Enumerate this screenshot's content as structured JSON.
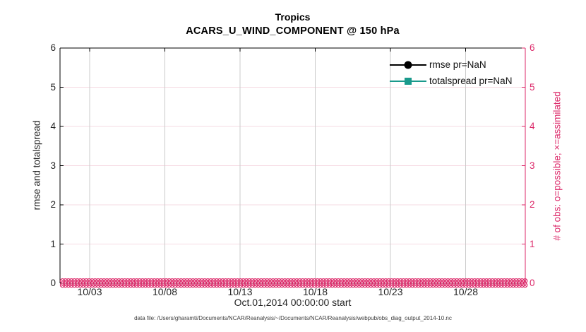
{
  "title": {
    "line1": "Tropics",
    "line2": "ACARS_U_WIND_COMPONENT @ 150 hPa"
  },
  "axes": {
    "x": {
      "label": "Oct.01,2014 00:00:00 start",
      "tick_labels": [
        "10/03",
        "10/08",
        "10/13",
        "10/18",
        "10/23",
        "10/28"
      ]
    },
    "y_left": {
      "label": "rmse and totalspread",
      "tick_labels": [
        "0",
        "1",
        "2",
        "3",
        "4",
        "5",
        "6"
      ],
      "color": "#262626"
    },
    "y_right": {
      "label": "# of obs: o=possible; ×=assimilated",
      "tick_labels": [
        "0",
        "1",
        "2",
        "3",
        "4",
        "5",
        "6"
      ],
      "color": "#dc2a6a"
    }
  },
  "legend": [
    {
      "label": "rmse pr=NaN",
      "color": "#000000",
      "marker": "circle"
    },
    {
      "label": "totalspread pr=NaN",
      "color": "#1a9a8c",
      "marker": "square"
    }
  ],
  "caption": "data file: /Users/gharamti/Documents/NCAR/Reanalysis/~/Documents/NCAR/Reanalysis/webpub/obs_diag_output_2014-10.nc",
  "colors": {
    "accent_pink": "#dc2a6a",
    "grid_vertical": "#cbcbcb",
    "grid_horizontal": "#f6dbe3",
    "teal": "#1a9a8c",
    "axis_black": "#000000"
  },
  "chart_data": {
    "type": "line",
    "title": "Tropics",
    "subtitle": "ACARS_U_WIND_COMPONENT @ 150 hPa",
    "xlabel": "Oct.01,2014 00:00:00 start",
    "ylabel_left": "rmse and totalspread",
    "ylabel_right": "# of obs: o=possible; ×=assimilated",
    "x_tick_labels": [
      "10/03",
      "10/08",
      "10/13",
      "10/18",
      "10/23",
      "10/28"
    ],
    "x_range": "Oct 01 2014 through Nov 01 2014",
    "ylim_left": [
      0,
      6
    ],
    "ylim_right": [
      0,
      6
    ],
    "grid": true,
    "legend_position": "upper-right-inside",
    "series": [
      {
        "name": "rmse pr=NaN",
        "axis": "left",
        "marker": "filled-circle",
        "color": "#000000",
        "values": "all NaN - no curve plotted"
      },
      {
        "name": "totalspread pr=NaN",
        "axis": "left",
        "marker": "filled-square",
        "color": "#1a9a8c",
        "values": "all NaN - no curve plotted"
      },
      {
        "name": "# of obs possible (o markers)",
        "axis": "right",
        "marker": "o",
        "color": "#dc2a6a",
        "constant_value": 0,
        "note": "dense row of o markers at y=0 spanning the full x-axis"
      },
      {
        "name": "# of obs assimilated (× markers)",
        "axis": "right",
        "marker": "×",
        "color": "#dc2a6a",
        "constant_value": 0,
        "note": "dense row of × markers at y=0 spanning the full x-axis"
      }
    ]
  }
}
